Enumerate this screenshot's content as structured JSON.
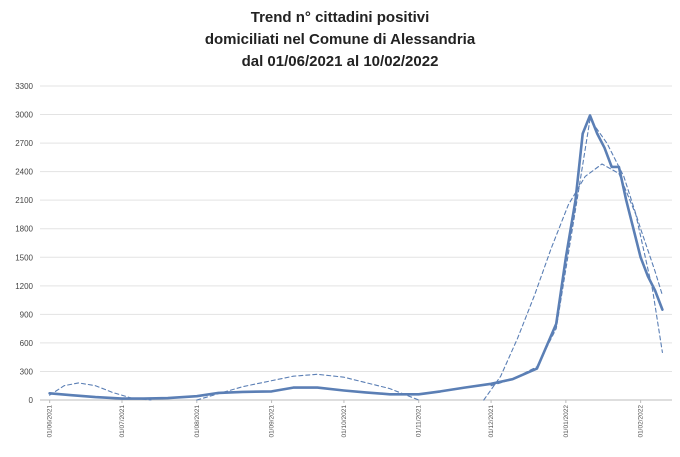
{
  "chart_data": {
    "type": "line",
    "title": [
      "Trend n° cittadini positivi",
      "domiciliati nel Comune di Alessandria",
      "dal 01/06/2021 al 10/02/2022"
    ],
    "ylim": [
      0,
      3300
    ],
    "yticks": [
      0,
      300,
      600,
      900,
      1200,
      1500,
      1800,
      2100,
      2400,
      2700,
      3000,
      3300
    ],
    "grid": "horizontal",
    "xticks": [
      "01/06/2021",
      "01/07/2021",
      "01/08/2021",
      "01/09/2021",
      "01/10/2021",
      "01/11/2021",
      "01/12/2021",
      "01/01/2022",
      "01/02/2022"
    ],
    "series": [
      {
        "style": "solid",
        "color": "#5b7fb5",
        "x": [
          "2021-06-01",
          "2021-06-10",
          "2021-06-20",
          "2021-07-01",
          "2021-07-10",
          "2021-07-20",
          "2021-08-01",
          "2021-08-10",
          "2021-08-20",
          "2021-09-01",
          "2021-09-10",
          "2021-09-20",
          "2021-10-01",
          "2021-10-10",
          "2021-10-20",
          "2021-11-01",
          "2021-11-10",
          "2021-11-20",
          "2021-12-01",
          "2021-12-10",
          "2021-12-20",
          "2021-12-28",
          "2022-01-01",
          "2022-01-05",
          "2022-01-08",
          "2022-01-11",
          "2022-01-14",
          "2022-01-17",
          "2022-01-20",
          "2022-01-23",
          "2022-01-26",
          "2022-01-29",
          "2022-02-01",
          "2022-02-04",
          "2022-02-07",
          "2022-02-10"
        ],
        "y": [
          70,
          50,
          30,
          15,
          15,
          20,
          40,
          75,
          85,
          90,
          130,
          130,
          100,
          80,
          60,
          60,
          90,
          130,
          170,
          220,
          330,
          800,
          1500,
          2100,
          2800,
          2990,
          2800,
          2650,
          2450,
          2450,
          2100,
          1800,
          1500,
          1300,
          1150,
          950
        ]
      },
      {
        "style": "dashed",
        "color": "#5b7fb5",
        "x": [
          "2021-06-01",
          "2021-06-07",
          "2021-06-13",
          "2021-06-20",
          "2021-06-27",
          "2021-07-05",
          "2021-07-13"
        ],
        "y": [
          50,
          150,
          180,
          150,
          80,
          20,
          0
        ]
      },
      {
        "style": "dashed",
        "color": "#5b7fb5",
        "x": [
          "2021-08-01",
          "2021-08-20",
          "2021-09-10",
          "2021-09-20",
          "2021-10-01",
          "2021-10-20",
          "2021-11-01"
        ],
        "y": [
          0,
          140,
          250,
          270,
          240,
          120,
          0
        ]
      },
      {
        "style": "dashed",
        "color": "#5b7fb5",
        "x": [
          "2021-11-28",
          "2021-12-05",
          "2021-12-12",
          "2021-12-19",
          "2021-12-26",
          "2022-01-02",
          "2022-01-09",
          "2022-01-16",
          "2022-01-23",
          "2022-01-30",
          "2022-02-06",
          "2022-02-10"
        ],
        "y": [
          0,
          250,
          650,
          1100,
          1600,
          2050,
          2350,
          2480,
          2380,
          1950,
          1150,
          500
        ]
      },
      {
        "style": "dashed",
        "color": "#5b7fb5",
        "x": [
          "2021-12-01",
          "2021-12-10",
          "2021-12-20",
          "2021-12-28",
          "2022-01-05",
          "2022-01-11",
          "2022-01-18",
          "2022-01-25",
          "2022-02-01",
          "2022-02-07",
          "2022-02-10"
        ],
        "y": [
          150,
          220,
          350,
          750,
          2000,
          2950,
          2700,
          2350,
          1800,
          1350,
          1100
        ]
      }
    ]
  }
}
